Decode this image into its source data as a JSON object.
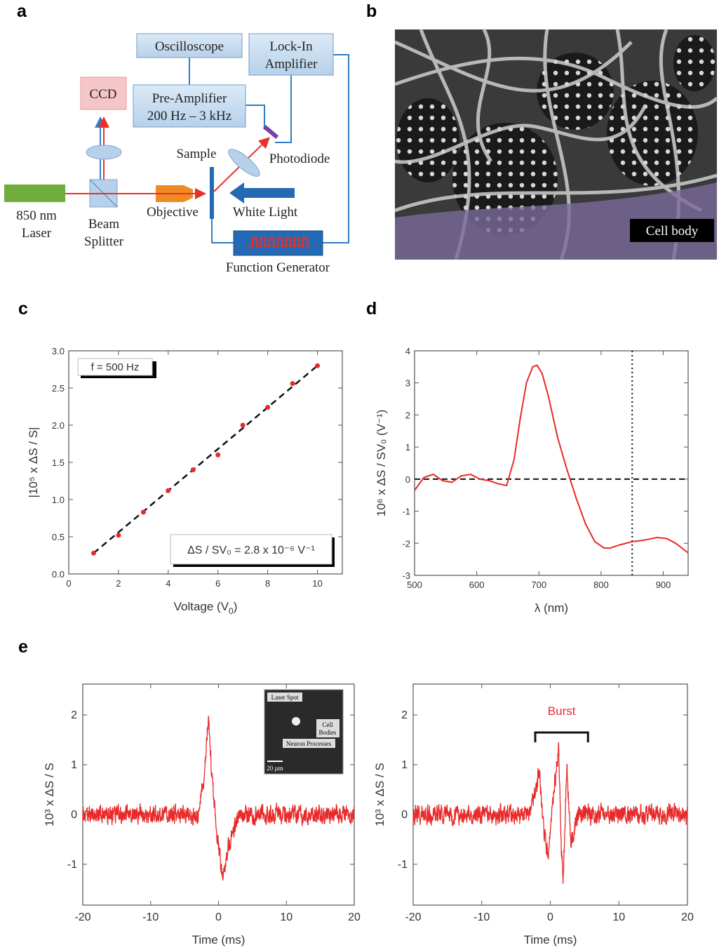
{
  "panel_labels": {
    "a": "a",
    "b": "b",
    "c": "c",
    "d": "d",
    "e": "e"
  },
  "diagram": {
    "oscilloscope": "Oscilloscope",
    "lockin_line1": "Lock-In",
    "lockin_line2": "Amplifier",
    "ccd": "CCD",
    "preamp_line1": "Pre-Amplifier",
    "preamp_line2": "200 Hz – 3 kHz",
    "sample": "Sample",
    "photodiode": "Photodiode",
    "laser_line1": "850 nm",
    "laser_line2": "Laser",
    "bs_line1": "Beam",
    "bs_line2": "Splitter",
    "objective": "Objective",
    "white_light": "White Light",
    "function_generator": "Function Generator",
    "colors": {
      "box_blue": "#c6dcf0",
      "box_border": "#6f9cc8",
      "ccd": "#f4c6c8",
      "laser": "#6fae3c",
      "objective": "#f08a24",
      "wire": "#2e7ec4",
      "beam": "#e8302a",
      "photodiode": "#7a3fa8",
      "fg": "#2469b3"
    }
  },
  "micrograph": {
    "label": "Cell body"
  },
  "chart_data": [
    {
      "id": "c",
      "type": "scatter",
      "xlabel": "Voltage (V",
      "xlabel_sub": "0",
      "xlabel_end": ")",
      "ylabel": "|10⁵ x ΔS / S|",
      "xlim": [
        0,
        11
      ],
      "ylim": [
        0,
        3.0
      ],
      "xticks": [
        "0",
        "2",
        "4",
        "6",
        "8",
        "10"
      ],
      "xtick_values": [
        0,
        2,
        4,
        6,
        8,
        10
      ],
      "yticks": [
        "0.0",
        "0.5",
        "1.0",
        "1.5",
        "2.0",
        "2.5",
        "3.0"
      ],
      "ytick_values": [
        0,
        0.5,
        1.0,
        1.5,
        2.0,
        2.5,
        3.0
      ],
      "x": [
        1,
        2,
        3,
        4,
        5,
        6,
        7,
        8,
        9,
        10
      ],
      "y": [
        0.28,
        0.52,
        0.83,
        1.12,
        1.4,
        1.6,
        2.0,
        2.24,
        2.56,
        2.8
      ],
      "fit": {
        "slope": 0.28,
        "intercept": 0.0,
        "style": "dashed"
      },
      "legend_freq": "f = 500 Hz",
      "annotation": "ΔS / SV₀ = 2.8 x 10⁻⁶ V⁻¹",
      "point_color": "#e82a2a"
    },
    {
      "id": "d",
      "type": "line",
      "xlabel": "λ (nm)",
      "ylabel": "10⁶ x ΔS / SV₀ (V⁻¹)",
      "xlim": [
        500,
        940
      ],
      "ylim": [
        -3,
        4
      ],
      "xticks": [
        "500",
        "600",
        "700",
        "800",
        "900"
      ],
      "xtick_values": [
        500,
        600,
        700,
        800,
        900
      ],
      "yticks": [
        "-3",
        "-2",
        "-1",
        "0",
        "1",
        "2",
        "3",
        "4"
      ],
      "ytick_values": [
        -3,
        -2,
        -1,
        0,
        1,
        2,
        3,
        4
      ],
      "x": [
        500,
        515,
        530,
        545,
        560,
        575,
        590,
        605,
        620,
        635,
        648,
        660,
        670,
        680,
        690,
        697,
        705,
        715,
        730,
        745,
        760,
        775,
        790,
        805,
        815,
        830,
        850,
        870,
        890,
        905,
        920,
        940
      ],
      "y": [
        -0.35,
        0.05,
        0.15,
        -0.05,
        -0.1,
        0.1,
        0.15,
        0.0,
        -0.05,
        -0.15,
        -0.2,
        0.6,
        1.9,
        3.0,
        3.5,
        3.55,
        3.3,
        2.6,
        1.3,
        0.3,
        -0.6,
        -1.4,
        -1.95,
        -2.15,
        -2.15,
        -2.05,
        -1.95,
        -1.9,
        -1.82,
        -1.85,
        -2.0,
        -2.3
      ],
      "hline": 0,
      "vline": 850,
      "line_color": "#e82a2a"
    },
    {
      "id": "e-left",
      "type": "line",
      "xlabel": "Time (ms)",
      "ylabel": "10³ x ΔS / S",
      "xlim": [
        -20,
        20
      ],
      "ylim": [
        -1.82,
        2.62
      ],
      "xticks": [
        "-20",
        "-10",
        "0",
        "10",
        "20"
      ],
      "xtick_values": [
        -20,
        -10,
        0,
        10,
        20
      ],
      "yticks": [
        "-1",
        "0",
        "1",
        "2"
      ],
      "ytick_values": [
        -1,
        0,
        1,
        2
      ],
      "noise_amplitude": 0.2,
      "spike_points": [
        [
          -3,
          0
        ],
        [
          -2,
          0.9
        ],
        [
          -1.5,
          2.0
        ],
        [
          -1,
          0.8
        ],
        [
          -0.3,
          -0.3
        ],
        [
          0.3,
          -1.0
        ],
        [
          0.7,
          -1.25
        ],
        [
          1.5,
          -0.6
        ],
        [
          3,
          0
        ]
      ],
      "line_color": "#e82a2a",
      "inset": {
        "laser_spot": "Laser Spot",
        "cell_bodies_line1": "Cell",
        "cell_bodies_line2": "Bodies",
        "neuron_processes": "Neuron Processes",
        "scale_bar": "20 µm"
      }
    },
    {
      "id": "e-right",
      "type": "line",
      "xlabel": "Time (ms)",
      "ylabel": "10³ x ΔS / S",
      "xlim": [
        -20,
        20
      ],
      "ylim": [
        -1.82,
        2.62
      ],
      "xticks": [
        "-20",
        "-10",
        "0",
        "10",
        "20"
      ],
      "xtick_values": [
        -20,
        -10,
        0,
        10,
        20
      ],
      "yticks": [
        "-1",
        "0",
        "1",
        "2"
      ],
      "ytick_values": [
        -1,
        0,
        1,
        2
      ],
      "noise_amplitude": 0.2,
      "spike_points": [
        [
          -3,
          0
        ],
        [
          -1.6,
          0.9
        ],
        [
          -1.0,
          -0.3
        ],
        [
          -0.3,
          -0.9
        ],
        [
          0.4,
          0.3
        ],
        [
          1.2,
          1.3
        ],
        [
          1.6,
          -0.6
        ],
        [
          1.9,
          -1.3
        ],
        [
          2.4,
          1.0
        ],
        [
          3.0,
          -0.6
        ],
        [
          4,
          0
        ]
      ],
      "annotation": "Burst",
      "bracket_x": [
        -2.2,
        5.5
      ],
      "line_color": "#e82a2a"
    }
  ]
}
